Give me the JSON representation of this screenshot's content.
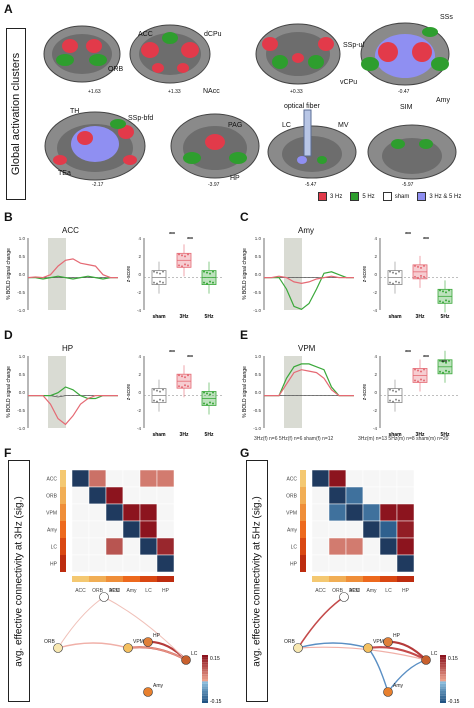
{
  "panelA": {
    "letter": "A",
    "vertical_label": "Global activation clusters",
    "region_labels": [
      "ACC",
      "dCPu",
      "SSp-ul",
      "SSs",
      "ORB",
      "NAcc",
      "vCPu",
      "Amy",
      "TH",
      "SSp-bfd",
      "PAG",
      "SIM",
      "optical fiber",
      "LC",
      "MV",
      "HP",
      "TEa"
    ],
    "coords": [
      "+1.63",
      "+1.33",
      "+0.33",
      "-0.47",
      "-2.17",
      "-3.97",
      "-5.47",
      "-5.97"
    ],
    "legend": [
      {
        "label": "3 Hz",
        "color": "#e23a4a"
      },
      {
        "label": "5 Hz",
        "color": "#2e9e2e"
      },
      {
        "label": "sham",
        "color": "#ffffff"
      },
      {
        "label": "3 Hz & 5 Hz",
        "color": "#8f8ff2"
      }
    ]
  },
  "panelB": {
    "letter": "B",
    "title": "ACC",
    "ylabel": "% BOLD signal change",
    "zlabel": "z-score",
    "cats": [
      "sham",
      "3Hz",
      "5Hz"
    ],
    "sig": [
      "***",
      "***"
    ]
  },
  "panelC": {
    "letter": "C",
    "title": "Amy",
    "ylabel": "% BOLD signal change",
    "zlabel": "z-score",
    "cats": [
      "sham",
      "3Hz",
      "5Hz"
    ],
    "sig": [
      "***",
      "***"
    ]
  },
  "panelD": {
    "letter": "D",
    "title": "HP",
    "ylabel": "% BOLD signal change",
    "zlabel": "z-score",
    "cats": [
      "sham",
      "3Hz",
      "5Hz"
    ],
    "sig": [
      "***",
      "***"
    ]
  },
  "panelE": {
    "letter": "E",
    "title": "VPM",
    "ylabel": "% BOLD signal change",
    "zlabel": "z-score",
    "cats": [
      "sham",
      "3Hz",
      "5Hz"
    ],
    "sig": [
      "***",
      "***",
      "***"
    ]
  },
  "ticks_left": [
    "1.0",
    "0.5",
    "0.0",
    "-0.5",
    "-1.0"
  ],
  "ticks_right": [
    "4",
    "2",
    "0",
    "-2",
    "-4"
  ],
  "legend_bottom_left": "3Hz(f) n=6  5Hz(f) n=6  sham(f) n=12",
  "legend_bottom_right": "3Hz(m) n=13  5Hz(m) n=8  sham(m) n=20",
  "panelF": {
    "letter": "F",
    "vertical_label": "avg. effective connectivity at 3Hz (sig.)"
  },
  "panelG": {
    "letter": "G",
    "vertical_label": "avg. effective connectivity at 5Hz (sig.)"
  },
  "matrix_labels": [
    "ACC",
    "ORB",
    "VPM",
    "Amy",
    "LC",
    "HP"
  ],
  "colorbar": {
    "max": "0.15",
    "min": "-0.15"
  },
  "chart_data": [
    {
      "type": "heatmap",
      "panel": "F",
      "rows": [
        "ACC",
        "ORB",
        "VPM",
        "Amy",
        "LC",
        "HP"
      ],
      "cols": [
        "ACC",
        "ORB",
        "VPM",
        "Amy",
        "LC",
        "HP"
      ],
      "values": [
        [
          0,
          0.05,
          0,
          0,
          0.04,
          0.04
        ],
        [
          0,
          0,
          0.15,
          0,
          0,
          0
        ],
        [
          0,
          0,
          0,
          0.15,
          0.15,
          0
        ],
        [
          0,
          0,
          0,
          0,
          0.15,
          0
        ],
        [
          0,
          0,
          0.08,
          0,
          0,
          0.13
        ],
        [
          0,
          0,
          0,
          0,
          0,
          0
        ]
      ]
    },
    {
      "type": "heatmap",
      "panel": "G",
      "rows": [
        "ACC",
        "ORB",
        "VPM",
        "Amy",
        "LC",
        "HP"
      ],
      "cols": [
        "ACC",
        "ORB",
        "VPM",
        "Amy",
        "LC",
        "HP"
      ],
      "values": [
        [
          0,
          0.15,
          0,
          0,
          0,
          0
        ],
        [
          0,
          0,
          -0.1,
          0,
          0,
          0
        ],
        [
          0,
          -0.1,
          0,
          -0.1,
          0.15,
          0.15
        ],
        [
          0,
          0,
          0,
          0,
          -0.12,
          0.14
        ],
        [
          0,
          0.04,
          0.04,
          0,
          0,
          0.15
        ],
        [
          0,
          0,
          0,
          0,
          0,
          0
        ]
      ]
    }
  ]
}
